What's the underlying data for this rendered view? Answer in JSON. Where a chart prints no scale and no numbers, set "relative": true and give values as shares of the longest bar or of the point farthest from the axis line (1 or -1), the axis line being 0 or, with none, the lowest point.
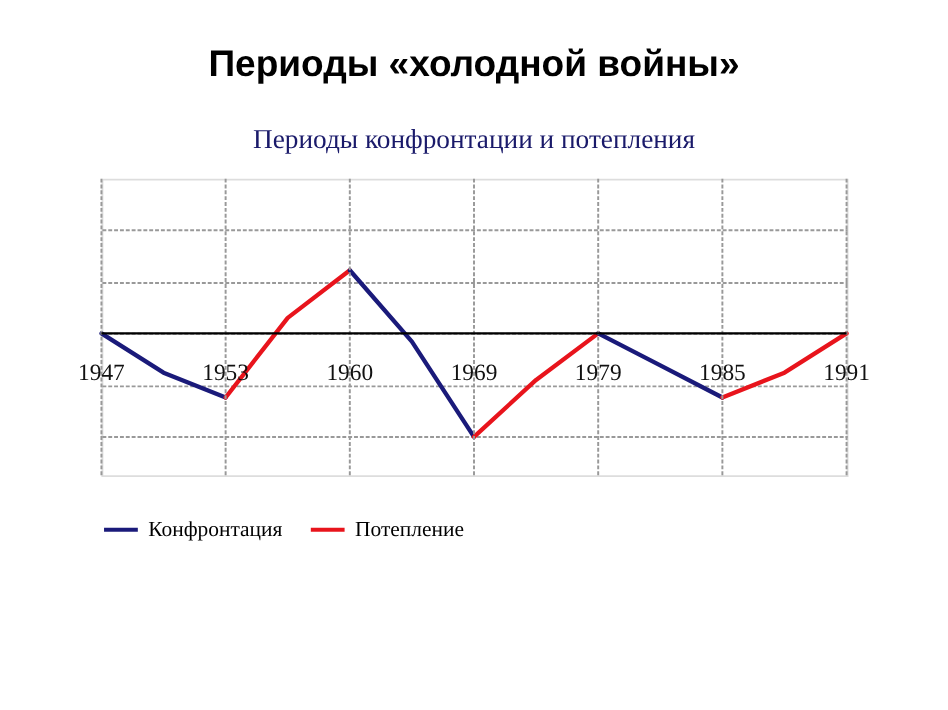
{
  "chart_data": {
    "type": "line",
    "title": "Периоды «холодной войны»",
    "subtitle": "Периоды конфронтации и потепления",
    "relative": true,
    "categories": [
      "1947",
      null,
      "1953",
      null,
      "1960",
      null,
      "1969",
      null,
      "1979",
      null,
      "1985",
      null,
      "1991"
    ],
    "series": [
      {
        "name": "Конфронтация",
        "color": "#1a1a7a",
        "values": [
          0,
          -0.38,
          -0.62,
          null,
          null,
          null,
          null,
          null,
          null,
          null,
          null,
          null,
          null
        ]
      },
      {
        "name": "Потепление",
        "color": "#e8141c",
        "values": [
          null,
          null,
          -0.62,
          0.15,
          0.61,
          null,
          null,
          null,
          null,
          null,
          null,
          null,
          null
        ]
      },
      {
        "color": "#1a1a7a",
        "values": [
          null,
          null,
          null,
          null,
          0.61,
          -0.08,
          -1,
          null,
          null,
          null,
          null,
          null,
          null
        ]
      },
      {
        "color": "#e8141c",
        "values": [
          null,
          null,
          null,
          null,
          null,
          null,
          -1,
          -0.45,
          0,
          null,
          null,
          null,
          null
        ]
      },
      {
        "color": "#1a1a7a",
        "values": [
          null,
          null,
          null,
          null,
          null,
          null,
          null,
          null,
          0,
          -0.31,
          -0.62,
          null,
          null
        ]
      },
      {
        "color": "#e8141c",
        "values": [
          null,
          null,
          null,
          null,
          null,
          null,
          null,
          null,
          null,
          null,
          -0.62,
          -0.38,
          0
        ]
      }
    ],
    "grid": true,
    "legend": "bottom",
    "line_style": "solid",
    "marker": "none"
  }
}
